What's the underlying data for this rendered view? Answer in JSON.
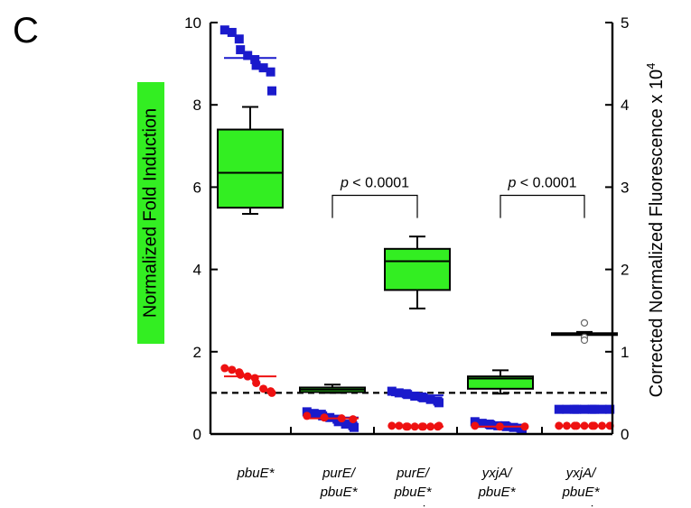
{
  "panel_label": "C",
  "colors": {
    "box_fill": "#33ee22",
    "blue_marker": "#1a1acc",
    "red_marker": "#ee1111",
    "open_circle": "#666666"
  },
  "chart_data": {
    "type": "box",
    "panel": "C",
    "categories": [
      {
        "id": "pbuE",
        "lines": [
          {
            "text": "pbuE*",
            "italic": true
          }
        ]
      },
      {
        "id": "purE_pbuE",
        "lines": [
          {
            "text": "purE/",
            "italic": true
          },
          {
            "text": "pbuE*",
            "italic": true
          }
        ]
      },
      {
        "id": "purE_pbuE_repair",
        "lines": [
          {
            "text": "purE/",
            "italic": true
          },
          {
            "text": "pbuE*",
            "italic": true
          },
          {
            "text": "repair",
            "italic": false
          }
        ]
      },
      {
        "id": "yxjA_pbuE",
        "lines": [
          {
            "text": "yxjA/",
            "italic": true
          },
          {
            "text": "pbuE*",
            "italic": true
          }
        ]
      },
      {
        "id": "yxjA_pbuE_repair",
        "lines": [
          {
            "text": "yxjA/",
            "italic": true
          },
          {
            "text": "pbuE*",
            "italic": true
          },
          {
            "text": "repair",
            "italic": false
          }
        ]
      }
    ],
    "ylabel_left": "Normalized Fold Induction",
    "ylabel_right": "Corrected Normalized Fluorescence x 10",
    "ylabel_right_exp": "4",
    "ylim_left": [
      0,
      10
    ],
    "ylim_right": [
      0,
      5
    ],
    "yticks_left": [
      "0",
      "2",
      "4",
      "6",
      "8",
      "10"
    ],
    "yticks_right": [
      "0",
      "1",
      "2",
      "3",
      "4",
      "5"
    ],
    "reference_line_left": 1.0,
    "boxes_left_axis": [
      {
        "category": "pbuE",
        "whisker_low": 5.35,
        "q1": 5.5,
        "median": 6.35,
        "q3": 7.4,
        "whisker_high": 7.95,
        "outliers": []
      },
      {
        "category": "purE_pbuE",
        "whisker_low": 1.0,
        "q1": 1.02,
        "median": 1.08,
        "q3": 1.13,
        "whisker_high": 1.2,
        "outliers": []
      },
      {
        "category": "purE_pbuE_repair",
        "whisker_low": 3.05,
        "q1": 3.5,
        "median": 4.2,
        "q3": 4.5,
        "whisker_high": 4.8,
        "outliers": []
      },
      {
        "category": "yxjA_pbuE",
        "whisker_low": 0.98,
        "q1": 1.1,
        "median": 1.35,
        "q3": 1.4,
        "whisker_high": 1.55,
        "outliers": []
      },
      {
        "category": "yxjA_pbuE_repair",
        "whisker_low": 2.42,
        "q1": 2.42,
        "median": 2.43,
        "q3": 2.45,
        "whisker_high": 2.48,
        "outliers": [
          2.7,
          2.35,
          2.28
        ]
      }
    ],
    "scatter_right_axis": [
      {
        "category": "pbuE",
        "marker": "square",
        "color": "blue",
        "mean": 4.57,
        "values": [
          4.91,
          4.88,
          4.8,
          4.67,
          4.6,
          4.55,
          4.48,
          4.45,
          4.4,
          4.17
        ]
      },
      {
        "category": "pbuE",
        "marker": "circle",
        "color": "red",
        "mean": 0.7,
        "values": [
          0.8,
          0.78,
          0.75,
          0.72,
          0.7,
          0.68,
          0.62,
          0.55,
          0.52,
          0.5
        ]
      },
      {
        "category": "purE_pbuE",
        "marker": "square",
        "color": "blue",
        "mean": 0.2,
        "values": [
          0.27,
          0.25,
          0.24,
          0.22,
          0.2,
          0.18,
          0.15,
          0.12,
          0.1,
          0.08
        ]
      },
      {
        "category": "purE_pbuE",
        "marker": "circle",
        "color": "red",
        "mean": 0.19,
        "values": [
          0.22,
          0.2,
          0.19,
          0.18
        ]
      },
      {
        "category": "purE_pbuE_repair",
        "marker": "square",
        "color": "blue",
        "mean": 0.47,
        "values": [
          0.52,
          0.5,
          0.49,
          0.48,
          0.46,
          0.45,
          0.44,
          0.42,
          0.4,
          0.38
        ]
      },
      {
        "category": "purE_pbuE_repair",
        "marker": "circle",
        "color": "red",
        "mean": 0.09,
        "values": [
          0.1,
          0.1,
          0.09,
          0.09,
          0.09,
          0.09,
          0.09,
          0.09,
          0.09,
          0.1
        ]
      },
      {
        "category": "yxjA_pbuE",
        "marker": "square",
        "color": "blue",
        "mean": 0.1,
        "values": [
          0.15,
          0.13,
          0.12,
          0.11,
          0.1,
          0.1,
          0.09,
          0.08,
          0.07,
          0.06
        ]
      },
      {
        "category": "yxjA_pbuE",
        "marker": "circle",
        "color": "red",
        "mean": 0.09,
        "values": [
          0.1,
          0.09,
          0.09
        ]
      },
      {
        "category": "yxjA_pbuE_repair",
        "marker": "square",
        "color": "blue",
        "mean": 0.3,
        "values": [
          0.3,
          0.3,
          0.3,
          0.3,
          0.3,
          0.3,
          0.3,
          0.3,
          0.3
        ]
      },
      {
        "category": "yxjA_pbuE_repair",
        "marker": "circle",
        "color": "red",
        "mean": 0.1,
        "values": [
          0.1,
          0.1,
          0.1,
          0.1,
          0.1,
          0.1,
          0.1,
          0.1,
          0.1
        ]
      }
    ],
    "significance_brackets": [
      {
        "from": "purE_pbuE",
        "to": "purE_pbuE_repair",
        "label_italic": "p",
        "label_rest": " < 0.0001",
        "y_left": 5.8,
        "drop_to_left": 5.25
      },
      {
        "from": "yxjA_pbuE",
        "to": "yxjA_pbuE_repair",
        "label_italic": "p",
        "label_rest": " < 0.0001",
        "y_left": 5.8,
        "drop_to_left": 5.25
      }
    ]
  }
}
